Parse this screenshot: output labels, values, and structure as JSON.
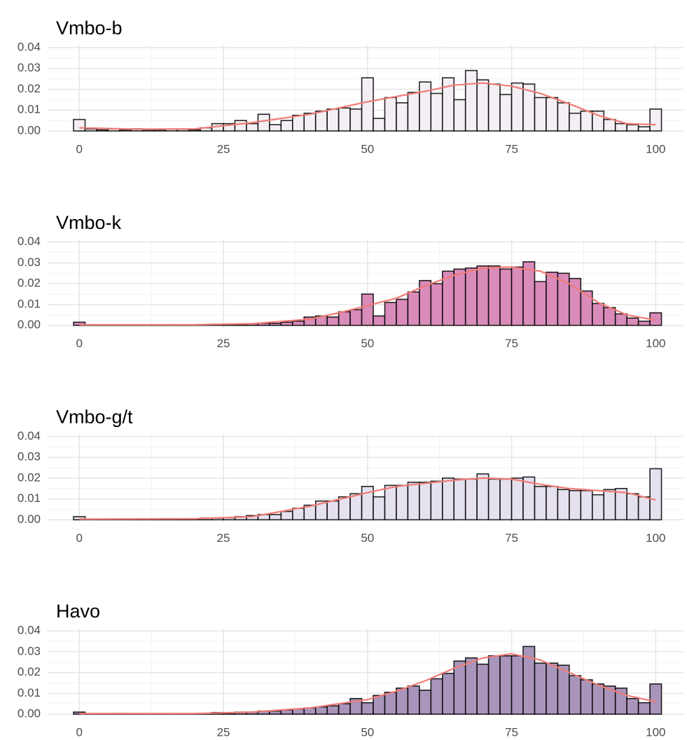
{
  "chart_data": [
    {
      "type": "histogram",
      "title": "Vmbo-b",
      "bins": [
        -1,
        1,
        3,
        5,
        7,
        9,
        11,
        13,
        15,
        17,
        19,
        21,
        23,
        25,
        27,
        29,
        31,
        33,
        35,
        37,
        39,
        41,
        43,
        45,
        47,
        49,
        51,
        53,
        55,
        57,
        59,
        61,
        63,
        65,
        67,
        69,
        71,
        73,
        75,
        77,
        79,
        81,
        83,
        85,
        87,
        89,
        91,
        93,
        95,
        97,
        99,
        101
      ],
      "values": [
        0.0055,
        0.001,
        0.0005,
        0.001,
        0.0005,
        0.001,
        0.0005,
        0.0003,
        0.0008,
        0.0008,
        0.0005,
        0.0015,
        0.0035,
        0.0035,
        0.005,
        0.0035,
        0.008,
        0.003,
        0.005,
        0.0075,
        0.0085,
        0.0095,
        0.0105,
        0.011,
        0.0105,
        0.0255,
        0.006,
        0.016,
        0.0135,
        0.0185,
        0.0235,
        0.018,
        0.0255,
        0.015,
        0.029,
        0.0245,
        0.0225,
        0.0175,
        0.023,
        0.0225,
        0.016,
        0.016,
        0.0135,
        0.0085,
        0.0095,
        0.0095,
        0.0055,
        0.0035,
        0.003,
        0.002,
        0.0105
      ],
      "color": "#f3eff4",
      "density": {
        "color": "#f07b76",
        "x": [
          0,
          10,
          20,
          30,
          40,
          50,
          60,
          65,
          70,
          75,
          80,
          85,
          90,
          95,
          100
        ],
        "values": [
          0.0015,
          0.0008,
          0.001,
          0.004,
          0.008,
          0.014,
          0.019,
          0.022,
          0.023,
          0.0215,
          0.018,
          0.013,
          0.0075,
          0.0035,
          0.003
        ]
      },
      "xlim": [
        -5.5,
        104.7
      ],
      "ylim": [
        -0.001,
        0.041
      ],
      "xticks": [
        0,
        25,
        50,
        75,
        100
      ],
      "yticks": [
        {
          "value": 0,
          "label": "0.00"
        },
        0.01,
        0.02,
        0.03,
        0.04
      ],
      "grid": true
    },
    {
      "type": "histogram",
      "title": "Vmbo-k",
      "bins": [
        -1,
        1,
        3,
        5,
        7,
        9,
        11,
        13,
        15,
        17,
        19,
        21,
        23,
        25,
        27,
        29,
        31,
        33,
        35,
        37,
        39,
        41,
        43,
        45,
        47,
        49,
        51,
        53,
        55,
        57,
        59,
        61,
        63,
        65,
        67,
        69,
        71,
        73,
        75,
        77,
        79,
        81,
        83,
        85,
        87,
        89,
        91,
        93,
        95,
        97,
        99,
        101
      ],
      "values": [
        0.0015,
        0.0003,
        0.0002,
        0.0003,
        0.0002,
        0.0003,
        0.0003,
        0.0003,
        0.0003,
        0.0003,
        0.0003,
        0.0003,
        0.0005,
        0.0005,
        0.0005,
        0.0008,
        0.001,
        0.001,
        0.0015,
        0.002,
        0.004,
        0.0045,
        0.004,
        0.0065,
        0.0075,
        0.015,
        0.0045,
        0.011,
        0.0125,
        0.016,
        0.0215,
        0.02,
        0.026,
        0.027,
        0.0275,
        0.0285,
        0.0285,
        0.027,
        0.028,
        0.0305,
        0.021,
        0.0255,
        0.025,
        0.0225,
        0.0165,
        0.0105,
        0.0085,
        0.0055,
        0.0035,
        0.002,
        0.006
      ],
      "color": "#d98bba",
      "density": {
        "color": "#f07b76",
        "x": [
          0,
          20,
          30,
          40,
          45,
          50,
          55,
          60,
          65,
          70,
          75,
          80,
          85,
          90,
          95,
          100
        ],
        "values": [
          0.0003,
          0.0003,
          0.0008,
          0.003,
          0.006,
          0.0095,
          0.013,
          0.019,
          0.024,
          0.0275,
          0.028,
          0.026,
          0.02,
          0.011,
          0.005,
          0.0025
        ]
      },
      "xlim": [
        -5.5,
        104.7
      ],
      "ylim": [
        -0.001,
        0.041
      ],
      "xticks": [
        0,
        25,
        50,
        75,
        100
      ],
      "yticks": [
        {
          "value": 0,
          "label": "0.00"
        },
        0.01,
        0.02,
        0.03,
        0.04
      ],
      "grid": true
    },
    {
      "type": "histogram",
      "title": "Vmbo-g/t",
      "bins": [
        -1,
        1,
        3,
        5,
        7,
        9,
        11,
        13,
        15,
        17,
        19,
        21,
        23,
        25,
        27,
        29,
        31,
        33,
        35,
        37,
        39,
        41,
        43,
        45,
        47,
        49,
        51,
        53,
        55,
        57,
        59,
        61,
        63,
        65,
        67,
        69,
        71,
        73,
        75,
        77,
        79,
        81,
        83,
        85,
        87,
        89,
        91,
        93,
        95,
        97,
        99,
        101
      ],
      "values": [
        0.0015,
        0.0002,
        0.0002,
        0.0002,
        0.0002,
        0.0003,
        0.0003,
        0.0003,
        0.0005,
        0.0005,
        0.0005,
        0.0008,
        0.0008,
        0.001,
        0.0015,
        0.002,
        0.0025,
        0.0025,
        0.004,
        0.0055,
        0.007,
        0.009,
        0.009,
        0.011,
        0.0125,
        0.016,
        0.011,
        0.0165,
        0.0165,
        0.018,
        0.018,
        0.0185,
        0.02,
        0.0195,
        0.0195,
        0.022,
        0.0195,
        0.0195,
        0.02,
        0.0205,
        0.016,
        0.016,
        0.0145,
        0.014,
        0.014,
        0.012,
        0.0145,
        0.015,
        0.0125,
        0.011,
        0.0245
      ],
      "color": "#e6e1ee",
      "density": {
        "color": "#f07b76",
        "x": [
          0,
          20,
          30,
          40,
          50,
          55,
          60,
          65,
          70,
          75,
          80,
          85,
          90,
          95,
          100
        ],
        "values": [
          0.0003,
          0.0005,
          0.0015,
          0.0065,
          0.013,
          0.016,
          0.0175,
          0.019,
          0.02,
          0.0195,
          0.017,
          0.015,
          0.014,
          0.013,
          0.0095
        ]
      },
      "xlim": [
        -5.5,
        104.7
      ],
      "ylim": [
        -0.001,
        0.041
      ],
      "xticks": [
        0,
        25,
        50,
        75,
        100
      ],
      "yticks": [
        {
          "value": 0,
          "label": "0.00"
        },
        0.01,
        0.02,
        0.03,
        0.04
      ],
      "grid": true
    },
    {
      "type": "histogram",
      "title": "Havo",
      "bins": [
        -1,
        1,
        3,
        5,
        7,
        9,
        11,
        13,
        15,
        17,
        19,
        21,
        23,
        25,
        27,
        29,
        31,
        33,
        35,
        37,
        39,
        41,
        43,
        45,
        47,
        49,
        51,
        53,
        55,
        57,
        59,
        61,
        63,
        65,
        67,
        69,
        71,
        73,
        75,
        77,
        79,
        81,
        83,
        85,
        87,
        89,
        91,
        93,
        95,
        97,
        99,
        101
      ],
      "values": [
        0.001,
        0.0002,
        0.0002,
        0.0003,
        0.0003,
        0.0002,
        0.0002,
        0.0002,
        0.0002,
        0.0002,
        0.0003,
        0.0003,
        0.0008,
        0.0005,
        0.001,
        0.001,
        0.0015,
        0.0015,
        0.002,
        0.0025,
        0.003,
        0.0035,
        0.004,
        0.005,
        0.0075,
        0.0055,
        0.009,
        0.0105,
        0.0125,
        0.0135,
        0.0115,
        0.017,
        0.0195,
        0.0255,
        0.027,
        0.024,
        0.028,
        0.028,
        0.028,
        0.0325,
        0.0245,
        0.0245,
        0.0235,
        0.0185,
        0.0165,
        0.0145,
        0.0135,
        0.0125,
        0.0075,
        0.0055,
        0.0145
      ],
      "color": "#a995bb",
      "density": {
        "color": "#f07b76",
        "x": [
          0,
          20,
          30,
          40,
          50,
          55,
          60,
          65,
          70,
          75,
          80,
          85,
          90,
          95,
          100
        ],
        "values": [
          0.0003,
          0.0003,
          0.001,
          0.003,
          0.007,
          0.011,
          0.016,
          0.022,
          0.027,
          0.029,
          0.026,
          0.02,
          0.014,
          0.009,
          0.006
        ]
      },
      "xlim": [
        -5.5,
        104.7
      ],
      "ylim": [
        -0.001,
        0.041
      ],
      "xticks": [
        0,
        25,
        50,
        75,
        100
      ],
      "yticks": [
        {
          "value": 0,
          "label": "0.00"
        },
        0.01,
        0.02,
        0.03,
        0.04
      ],
      "grid": true
    }
  ]
}
